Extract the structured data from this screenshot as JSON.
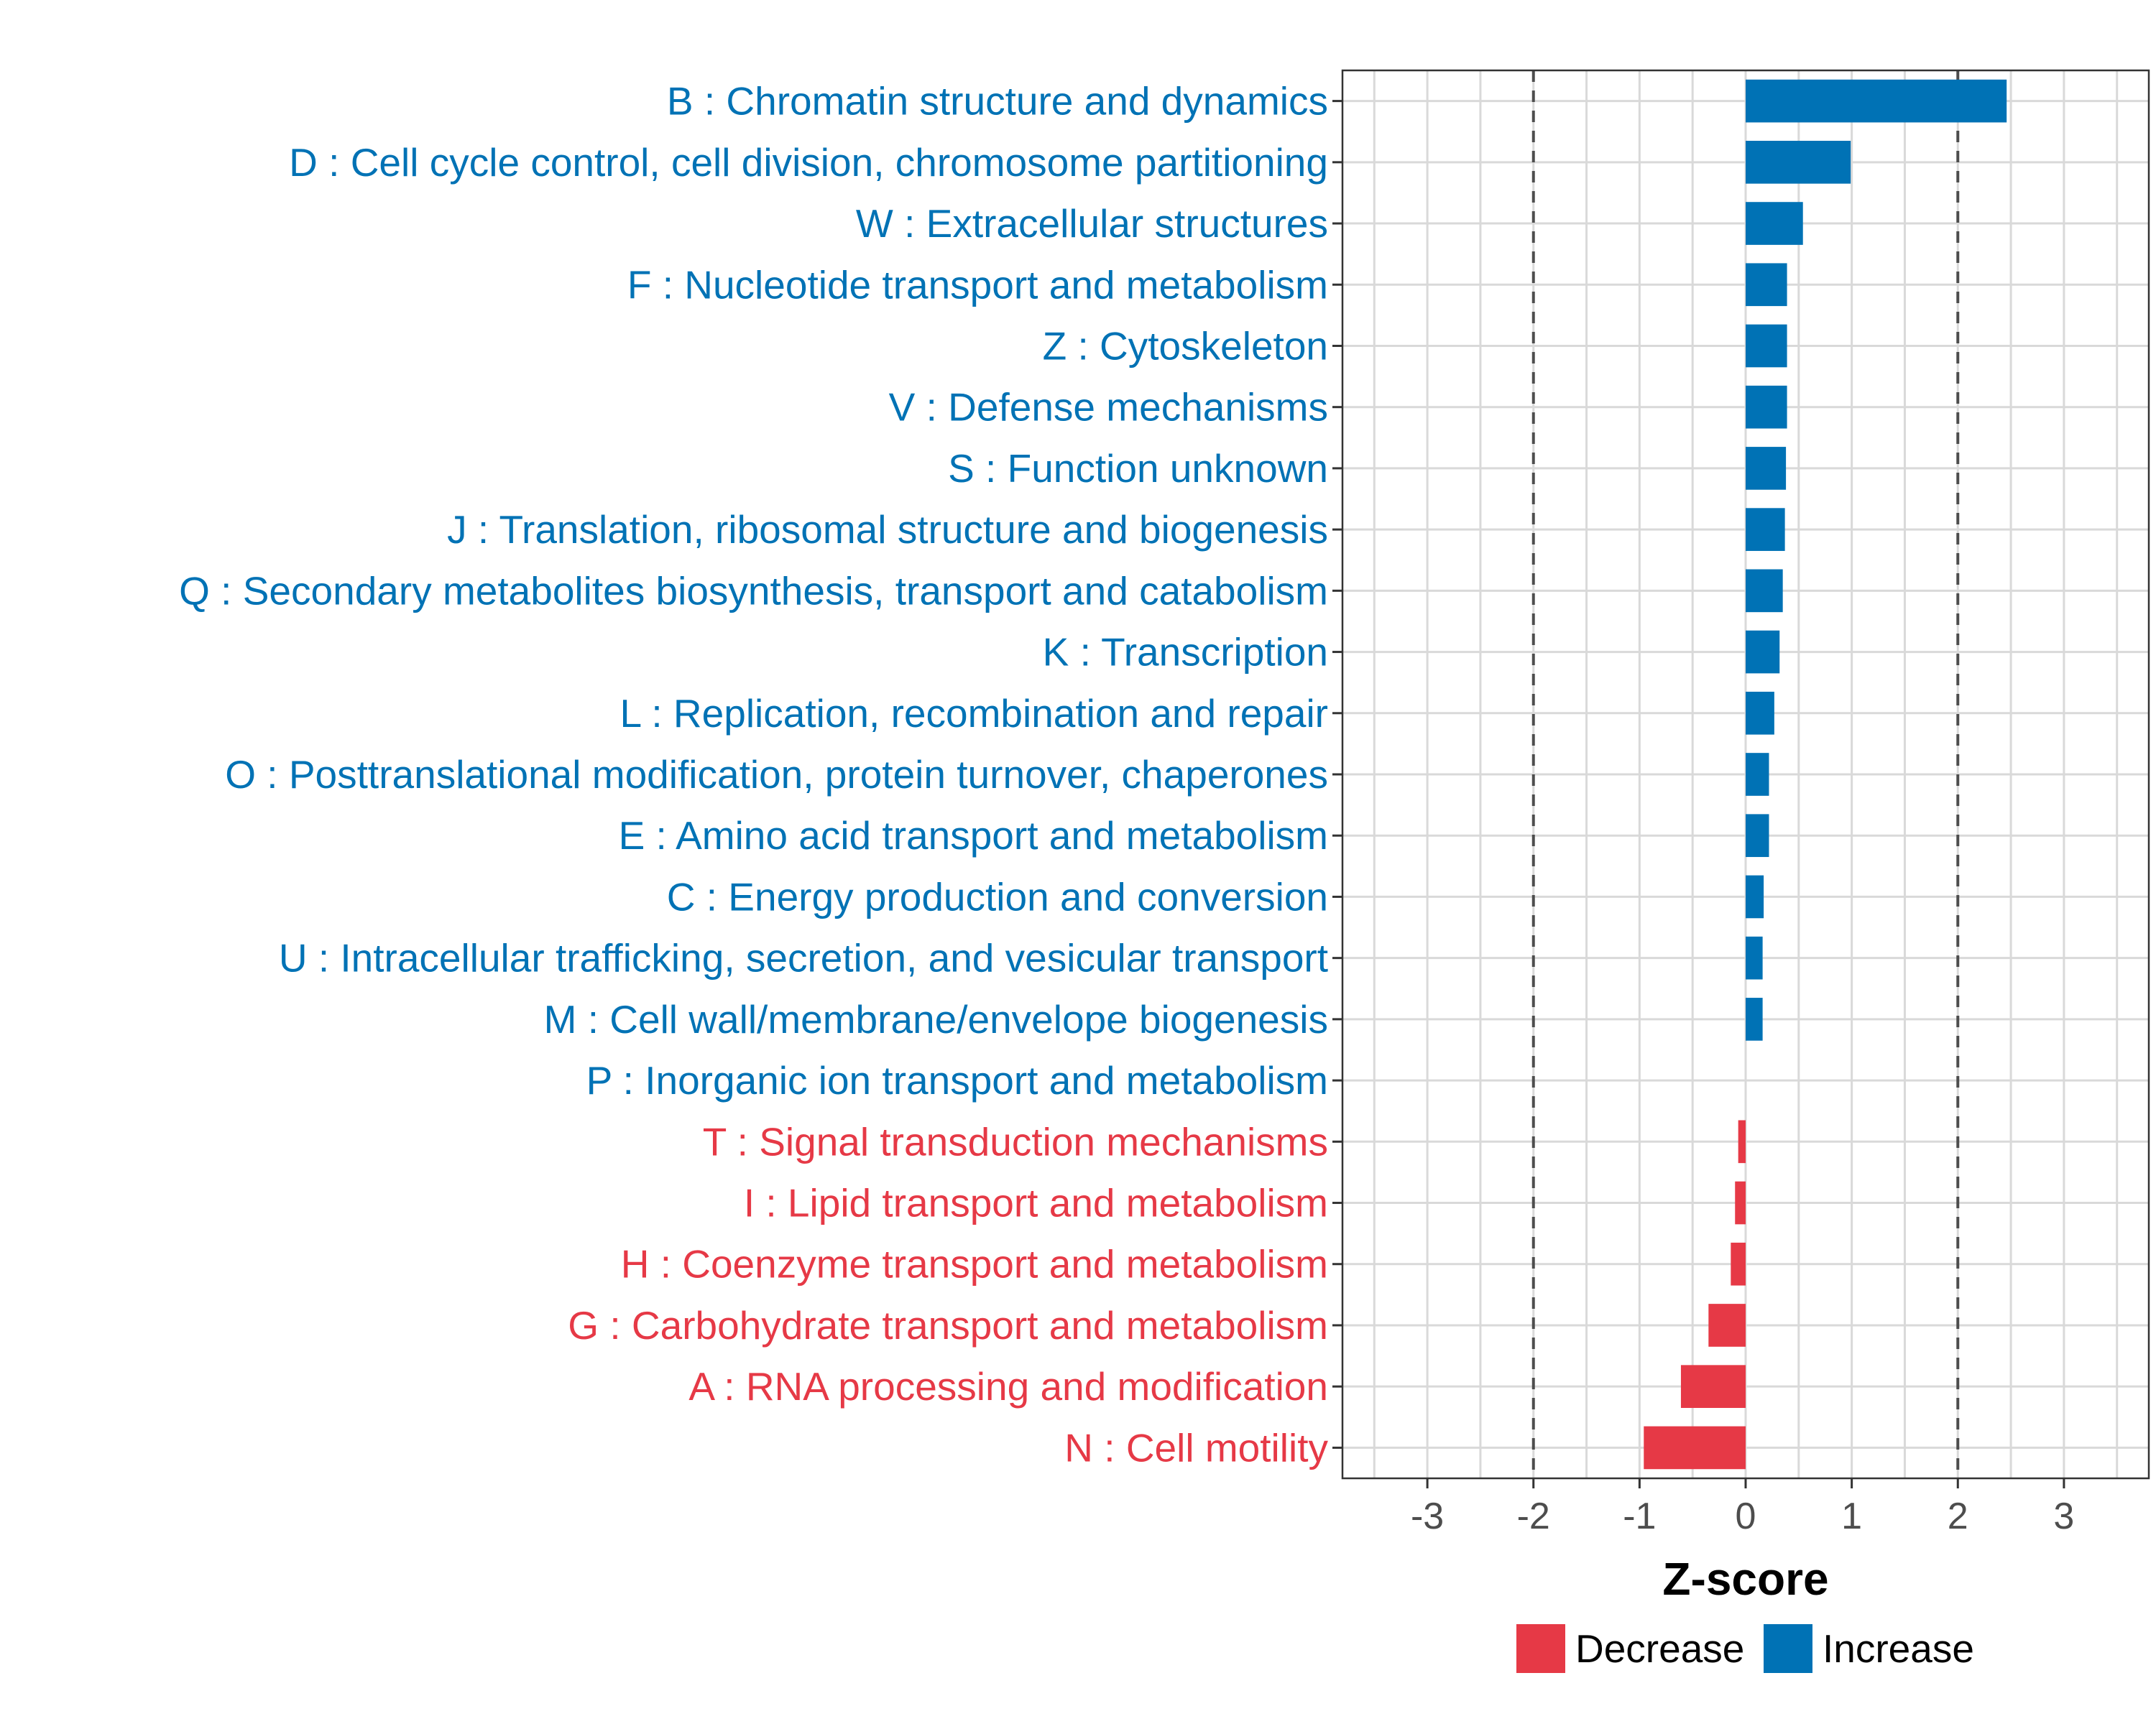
{
  "chart_data": {
    "type": "bar",
    "orientation": "horizontal",
    "title": "",
    "xlabel": "Z-score",
    "ylabel": "",
    "xlim": [
      -3.8,
      3.8
    ],
    "xticks": [
      -3,
      -2,
      -1,
      0,
      1,
      2,
      3
    ],
    "xtick_labels": [
      "-3",
      "-2",
      "-1",
      "0",
      "1",
      "2",
      "3"
    ],
    "reference_lines": [
      -2,
      2
    ],
    "grid": true,
    "legend_position": "bottom",
    "colors": {
      "Increase": "#0072b5",
      "Decrease": "#e63946"
    },
    "legend": [
      {
        "label": "Decrease",
        "color": "#e63946"
      },
      {
        "label": "Increase",
        "color": "#0072b5"
      }
    ],
    "categories": [
      "B : Chromatin structure and dynamics",
      "D : Cell cycle control, cell division, chromosome partitioning",
      "W : Extracellular structures",
      "F : Nucleotide transport and metabolism",
      "Z : Cytoskeleton",
      "V : Defense mechanisms",
      "S : Function unknown",
      "J : Translation, ribosomal structure and biogenesis",
      "Q : Secondary metabolites biosynthesis, transport and catabolism",
      "K : Transcription",
      "L : Replication, recombination and repair",
      "O : Posttranslational modification, protein turnover, chaperones",
      "E : Amino acid transport and metabolism",
      "C : Energy production and conversion",
      "U : Intracellular trafficking, secretion, and vesicular transport",
      "M : Cell wall/membrane/envelope biogenesis",
      "P : Inorganic ion transport and metabolism",
      "T : Signal transduction mechanisms",
      "I : Lipid transport and metabolism",
      "H : Coenzyme transport and metabolism",
      "G : Carbohydrate transport and metabolism",
      "A : RNA processing and modification",
      "N : Cell motility"
    ],
    "values": [
      2.46,
      0.99,
      0.54,
      0.39,
      0.39,
      0.39,
      0.38,
      0.37,
      0.35,
      0.32,
      0.27,
      0.22,
      0.22,
      0.17,
      0.16,
      0.16,
      0.0,
      -0.07,
      -0.1,
      -0.14,
      -0.35,
      -0.61,
      -0.96
    ],
    "direction": [
      "Increase",
      "Increase",
      "Increase",
      "Increase",
      "Increase",
      "Increase",
      "Increase",
      "Increase",
      "Increase",
      "Increase",
      "Increase",
      "Increase",
      "Increase",
      "Increase",
      "Increase",
      "Increase",
      "Increase",
      "Decrease",
      "Decrease",
      "Decrease",
      "Decrease",
      "Decrease",
      "Decrease"
    ]
  }
}
